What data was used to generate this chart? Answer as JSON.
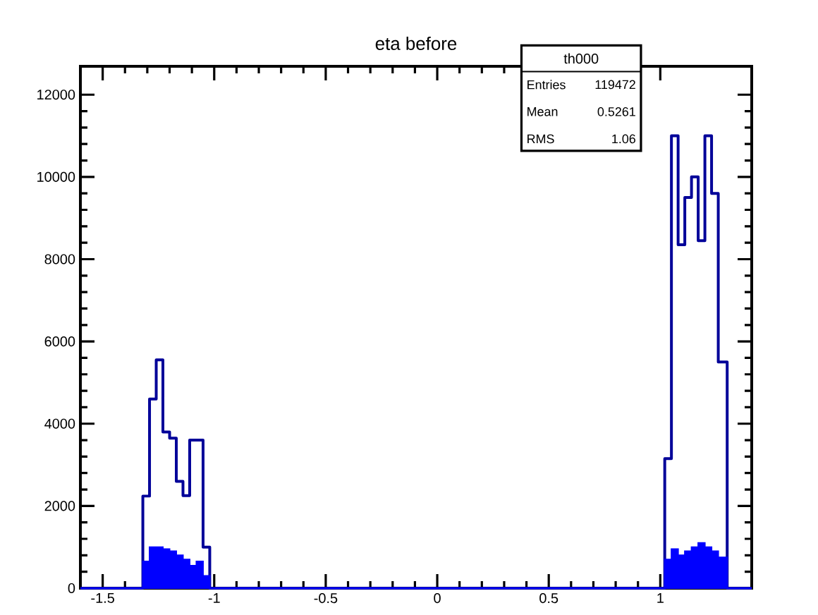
{
  "chart_data": {
    "type": "histogram",
    "title": "eta before",
    "bins": [
      -1.6,
      -1.32,
      -1.29,
      -1.26,
      -1.23,
      -1.2,
      -1.17,
      -1.14,
      -1.11,
      -1.08,
      -1.05,
      -1.02,
      1.02,
      1.05,
      1.08,
      1.11,
      1.14,
      1.17,
      1.2,
      1.23,
      1.26,
      1.3,
      1.41
    ],
    "series": [
      {
        "color": "#000099",
        "values": [
          0,
          2240,
          4600,
          5550,
          3800,
          3650,
          2600,
          2250,
          3600,
          3600,
          1000,
          0,
          3150,
          11000,
          8350,
          9500,
          10000,
          8450,
          11000,
          9600,
          5500,
          0
        ]
      },
      {
        "color": "#0000ff",
        "values": [
          0,
          650,
          1000,
          1000,
          950,
          900,
          800,
          700,
          550,
          650,
          300,
          0,
          700,
          950,
          800,
          900,
          1000,
          1100,
          1000,
          900,
          750,
          0
        ]
      }
    ],
    "xlim": [
      -1.6,
      1.41
    ],
    "ylim": [
      0,
      12690
    ],
    "xticks": [
      -1.5,
      -1,
      -0.5,
      0,
      0.5,
      1
    ],
    "yticks": [
      0,
      2000,
      4000,
      6000,
      8000,
      10000,
      12000
    ],
    "annotations": [
      "th000",
      "Entries",
      "119472",
      "Mean",
      "0.5261",
      "RMS",
      "1.06"
    ],
    "grid": false
  }
}
